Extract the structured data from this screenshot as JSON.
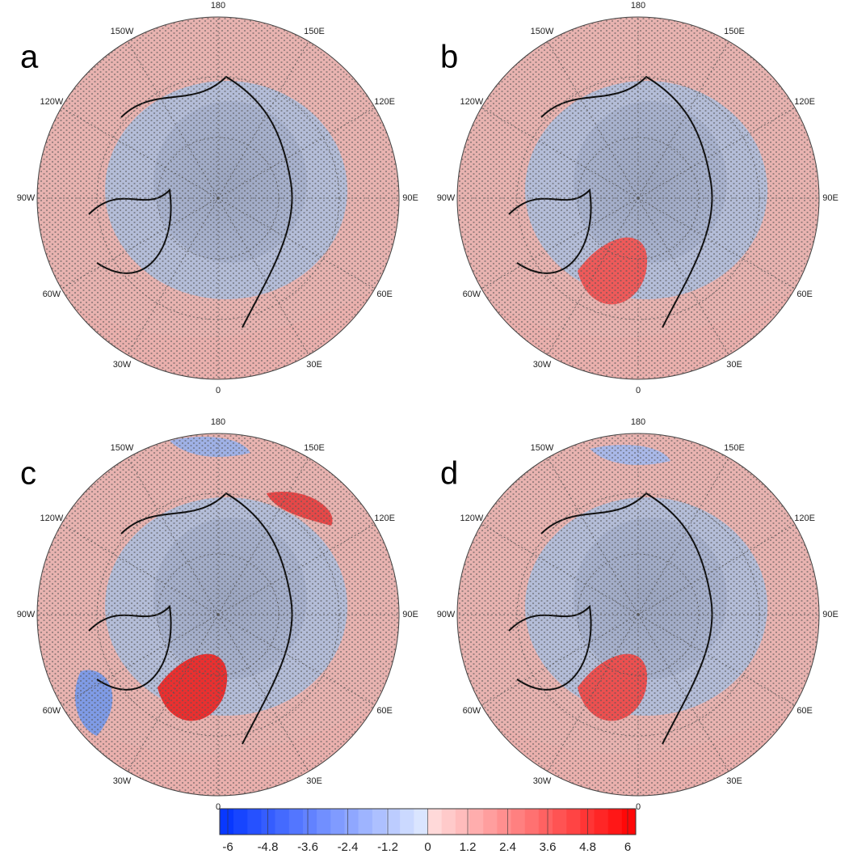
{
  "panels": [
    {
      "label": "a",
      "lon_labels": [
        "0",
        "30E",
        "60E",
        "90E",
        "120E",
        "150E",
        "180",
        "150W",
        "120W",
        "90W",
        "60W",
        "30W"
      ]
    },
    {
      "label": "b",
      "lon_labels": [
        "0",
        "30E",
        "60E",
        "90E",
        "120E",
        "150E",
        "180",
        "150W",
        "120W",
        "90W",
        "60W",
        "30W"
      ]
    },
    {
      "label": "c",
      "lon_labels": [
        "0",
        "30E",
        "60E",
        "90E",
        "120E",
        "150E",
        "180",
        "150W",
        "120W",
        "90W",
        "60W",
        "30W"
      ]
    },
    {
      "label": "d",
      "lon_labels": [
        "0",
        "30E",
        "60E",
        "90E",
        "120E",
        "150E",
        "180",
        "150W",
        "120W",
        "90W",
        "60W",
        "30W"
      ]
    }
  ],
  "colorbar": {
    "lim": [
      -6,
      6
    ],
    "ticks": [
      -6,
      -4.8,
      -3.6,
      -2.4,
      -1.2,
      0,
      1.2,
      2.4,
      3.6,
      4.8,
      6
    ]
  }
}
